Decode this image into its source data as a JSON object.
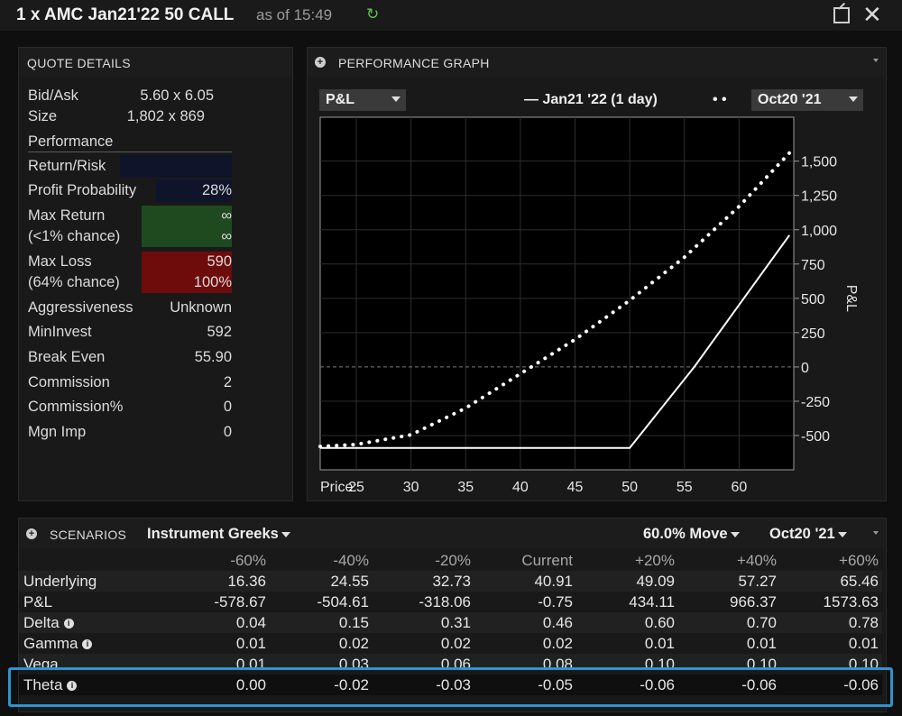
{
  "window": {
    "title": "1 x AMC Jan21'22 50 CALL",
    "as_of": "as of 15:49"
  },
  "quote": {
    "header": "QUOTE DETAILS",
    "bid_ask_label": "Bid/Ask",
    "bid_ask_value": "5.60 x 6.05",
    "size_label": "Size",
    "size_value": "1,802 x 869",
    "performance_label": "Performance",
    "return_risk_label": "Return/Risk",
    "profit_prob_label": "Profit Probability",
    "profit_prob_value": "28%",
    "max_return_label1": "Max Return",
    "max_return_label2": "(<1% chance)",
    "max_return_value1": "∞",
    "max_return_value2": "∞",
    "max_loss_label1": "Max Loss",
    "max_loss_label2": "(64% chance)",
    "max_loss_value1": "590",
    "max_loss_value2": "100%",
    "aggr_label": "Aggressiveness",
    "aggr_value": "Unknown",
    "mininvest_label": "MinInvest",
    "mininvest_value": "592",
    "breakeven_label": "Break Even",
    "breakeven_value": "55.90",
    "commission_label": "Commission",
    "commission_value": "2",
    "commission_pct_label": "Commission%",
    "commission_pct_value": "0",
    "mgn_label": "Mgn Imp",
    "mgn_value": "0",
    "colors": {
      "green": "#1f4a1f",
      "red": "#6e0c0c",
      "navy": "#10142a"
    }
  },
  "graph": {
    "header": "PERFORMANCE GRAPH",
    "metric_dropdown": "P&L",
    "legend_solid": "— Jan21 '22 (1 day)",
    "legend_dotted": "• •",
    "date_dropdown": "Oct20 '21"
  },
  "chart_data": {
    "type": "line",
    "ylabel": "P&L",
    "x_axis_label": "Price:",
    "xlim": [
      21.7,
      65
    ],
    "ylim": [
      -750,
      1820
    ],
    "x_ticks": [
      25,
      30,
      35,
      40,
      45,
      50,
      55,
      60
    ],
    "y_ticks": [
      -500,
      -250,
      0,
      250,
      500,
      750,
      1000,
      1250,
      1500
    ],
    "y_tick_labels": [
      "-500",
      "-250",
      "0",
      "250",
      "500",
      "750",
      "1,000",
      "1,250",
      "1,500"
    ],
    "series": [
      {
        "style": "solid",
        "x": [
          21.7,
          50,
          55.9,
          64.6
        ],
        "y": [
          -590,
          -590,
          0,
          960
        ]
      },
      {
        "style": "dotted",
        "x": [
          21.7,
          25,
          30,
          35,
          40,
          45,
          50,
          55,
          60,
          64.6
        ],
        "y": [
          -580,
          -565,
          -495,
          -300,
          -50,
          200,
          485,
          800,
          1170,
          1560
        ]
      }
    ]
  },
  "scenarios": {
    "header": "SCENARIOS",
    "greeks_dropdown": "Instrument Greeks",
    "move_dropdown": "60.0% Move",
    "date_dropdown": "Oct20 '21",
    "columns": [
      "-60%",
      "-40%",
      "-20%",
      "Current",
      "+20%",
      "+40%",
      "+60%"
    ],
    "rows": [
      {
        "label": "Underlying",
        "values": [
          "16.36",
          "24.55",
          "32.73",
          "40.91",
          "49.09",
          "57.27",
          "65.46"
        ]
      },
      {
        "label": "P&L",
        "values": [
          "-578.67",
          "-504.61",
          "-318.06",
          "-0.75",
          "434.11",
          "966.37",
          "1573.63"
        ]
      },
      {
        "label": "Delta",
        "values": [
          "0.04",
          "0.15",
          "0.31",
          "0.46",
          "0.60",
          "0.70",
          "0.78"
        ]
      },
      {
        "label": "Gamma",
        "values": [
          "0.01",
          "0.02",
          "0.02",
          "0.02",
          "0.01",
          "0.01",
          "0.01"
        ]
      },
      {
        "label": "Vega",
        "values": [
          "0.01",
          "0.03",
          "0.06",
          "0.08",
          "0.10",
          "0.10",
          "0.10"
        ]
      },
      {
        "label": "Theta",
        "values": [
          "0.00",
          "-0.02",
          "-0.03",
          "-0.05",
          "-0.06",
          "-0.06",
          "-0.06"
        ]
      }
    ],
    "info_symbol": "i",
    "highlight_color": "#2e93d1"
  }
}
